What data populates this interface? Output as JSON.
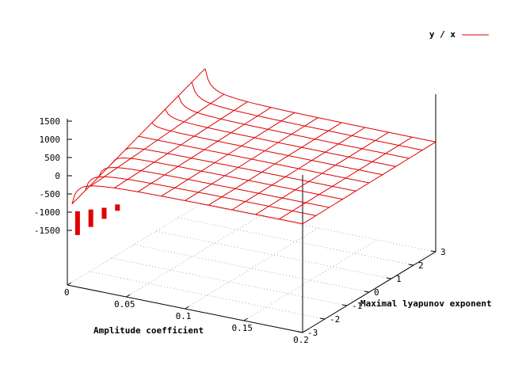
{
  "chart_data": {
    "type": "surface",
    "xlabel": "Amplitude coefficient",
    "ylabel": "Maximal lyapunov exponent",
    "zlabel": "",
    "x_ticks": [
      "0",
      "0.05",
      "0.1",
      "0.15",
      "0.2"
    ],
    "y_ticks": [
      "-3",
      "-2",
      "-1",
      "0",
      "1",
      "2",
      "3"
    ],
    "z_ticks": [
      "1500",
      "1000",
      "500",
      "0",
      "-500",
      "-1000",
      "-1500"
    ],
    "xlim": [
      0,
      0.2
    ],
    "ylim": [
      -3,
      3
    ],
    "zlim": [
      -1500,
      1500
    ],
    "grid": true,
    "legend_position": "top-right",
    "series": [
      {
        "name": "y / x",
        "color": "#e00000",
        "function": "z = y / x",
        "x_samples": [
          0,
          0.02,
          0.04,
          0.06,
          0.08,
          0.1,
          0.12,
          0.14,
          0.16,
          0.18,
          0.2
        ],
        "y_samples": [
          -3,
          -2.4,
          -1.8,
          -1.2,
          -0.6,
          0,
          0.6,
          1.2,
          1.8,
          2.4,
          3
        ]
      }
    ]
  }
}
